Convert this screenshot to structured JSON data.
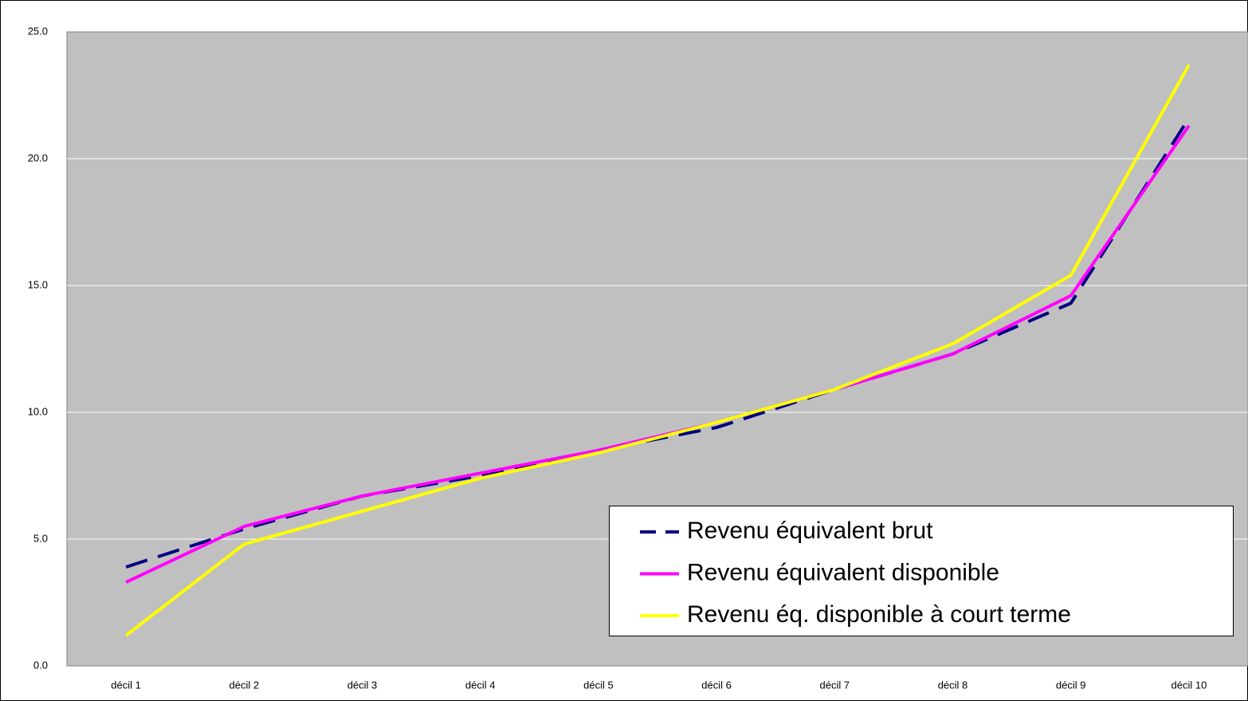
{
  "chart_data": {
    "type": "line",
    "categories": [
      "décil 1",
      "décil 2",
      "décil 3",
      "décil 4",
      "décil 5",
      "décil 6",
      "décil 7",
      "décil 8",
      "décil 9",
      "décil 10"
    ],
    "series": [
      {
        "name": "Revenu équivalent brut",
        "color": "#000080",
        "style": "dashed",
        "values": [
          3.9,
          5.4,
          6.7,
          7.5,
          8.5,
          9.4,
          10.9,
          12.3,
          14.3,
          21.6
        ]
      },
      {
        "name": "Revenu équivalent disponible",
        "color": "#ff00ff",
        "style": "solid",
        "values": [
          3.3,
          5.5,
          6.7,
          7.6,
          8.5,
          9.6,
          10.9,
          12.3,
          14.6,
          21.3
        ]
      },
      {
        "name": "Revenu éq. disponible à court terme",
        "color": "#ffff00",
        "style": "solid",
        "values": [
          1.2,
          4.8,
          6.1,
          7.4,
          8.4,
          9.6,
          10.9,
          12.7,
          15.4,
          23.7
        ]
      }
    ],
    "ylim": [
      0,
      25
    ],
    "yticks": [
      {
        "value": 0,
        "label": "0.0"
      },
      {
        "value": 5,
        "label": "5.0"
      },
      {
        "value": 10,
        "label": "10.0"
      },
      {
        "value": 15,
        "label": "15.0"
      },
      {
        "value": 20,
        "label": "20.0"
      },
      {
        "value": 25,
        "label": "25.0"
      }
    ],
    "grid": true,
    "legend": "bottom-right"
  }
}
